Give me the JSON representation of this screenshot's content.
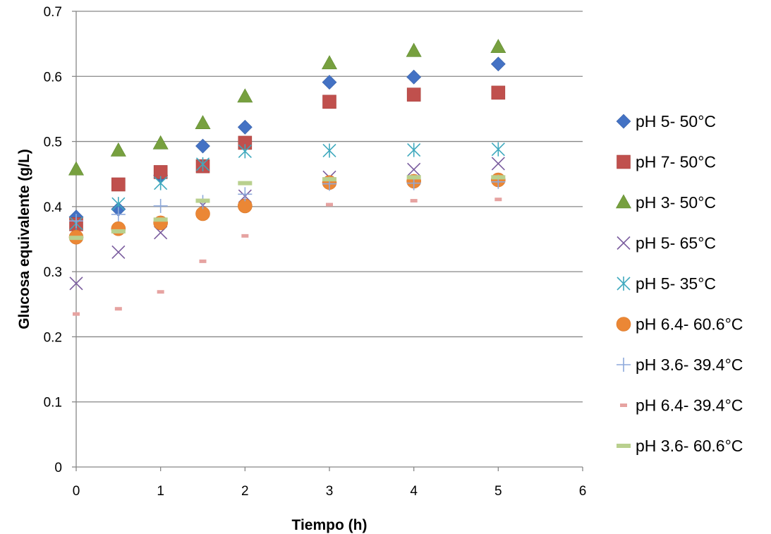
{
  "chart_data": {
    "type": "scatter",
    "title": "",
    "xlabel": "Tiempo (h)",
    "ylabel": "Glucosa equivalente (g/L)",
    "xlim": [
      0,
      6
    ],
    "ylim": [
      0,
      0.7
    ],
    "x_ticks": [
      0,
      1,
      2,
      3,
      4,
      5,
      6
    ],
    "y_ticks": [
      0,
      0.1,
      0.2,
      0.3,
      0.4,
      0.5,
      0.6,
      0.7
    ],
    "x_tick_labels": [
      "0",
      "1",
      "2",
      "3",
      "4",
      "5",
      "6"
    ],
    "y_tick_labels": [
      "0",
      "0.1",
      "0.2",
      "0.3",
      "0.4",
      "0.5",
      "0.6",
      "0.7"
    ],
    "grid": "horizontal major",
    "legend_position": "right",
    "series": [
      {
        "name": "pH 5- 50°C",
        "marker": "diamond",
        "color": "#4472C4",
        "x": [
          0,
          0.5,
          1,
          1.5,
          2,
          3,
          4,
          5
        ],
        "y": [
          0.384,
          0.396,
          0.448,
          0.493,
          0.522,
          0.591,
          0.599,
          0.619
        ]
      },
      {
        "name": "pH 7- 50°C",
        "marker": "square",
        "color": "#C0504D",
        "x": [
          0,
          0.5,
          1,
          1.5,
          2,
          3,
          4,
          5
        ],
        "y": [
          0.373,
          0.434,
          0.453,
          0.462,
          0.498,
          0.561,
          0.572,
          0.575
        ]
      },
      {
        "name": "pH 3- 50°C",
        "marker": "triangle",
        "color": "#77A03F",
        "x": [
          0,
          0.5,
          1,
          1.5,
          2,
          3,
          4,
          5
        ],
        "y": [
          0.457,
          0.486,
          0.497,
          0.528,
          0.569,
          0.62,
          0.639,
          0.645
        ]
      },
      {
        "name": "pH 5- 65°C",
        "marker": "x",
        "color": "#7A5C9E",
        "x": [
          0,
          0.5,
          1,
          1.5,
          2,
          3,
          4,
          5
        ],
        "y": [
          0.282,
          0.33,
          0.36,
          0.402,
          0.416,
          0.445,
          0.457,
          0.466
        ]
      },
      {
        "name": "pH 5- 35°C",
        "marker": "asterisk",
        "color": "#3EA9BE",
        "x": [
          0,
          0.5,
          1,
          1.5,
          2,
          3,
          4,
          5
        ],
        "y": [
          0.374,
          0.404,
          0.436,
          0.465,
          0.485,
          0.486,
          0.487,
          0.488
        ]
      },
      {
        "name": "pH 6.4- 60.6°C",
        "marker": "circle",
        "color": "#EB8735",
        "x": [
          0,
          0.5,
          1,
          1.5,
          2,
          3,
          4,
          5
        ],
        "y": [
          0.353,
          0.366,
          0.375,
          0.389,
          0.401,
          0.437,
          0.439,
          0.441
        ]
      },
      {
        "name": "pH 3.6- 39.4°C",
        "marker": "plus",
        "color": "#8EA9DB",
        "x": [
          0,
          0.5,
          1,
          1.5,
          2,
          3,
          4,
          5
        ],
        "y": [
          0.378,
          0.388,
          0.401,
          0.407,
          0.419,
          0.435,
          0.436,
          0.438
        ]
      },
      {
        "name": "pH 6.4- 39.4°C",
        "marker": "dash",
        "color": "#E6A3A1",
        "x": [
          0,
          0.5,
          1,
          1.5,
          2,
          3,
          4,
          5
        ],
        "y": [
          0.235,
          0.243,
          0.269,
          0.316,
          0.355,
          0.403,
          0.409,
          0.411
        ]
      },
      {
        "name": "pH 3.6- 60.6°C",
        "marker": "bar",
        "color": "#B9D08E",
        "x": [
          0,
          0.5,
          1,
          1.5,
          2,
          3,
          4,
          5
        ],
        "y": [
          0.352,
          0.362,
          0.38,
          0.409,
          0.436,
          0.442,
          0.445,
          0.445
        ]
      }
    ]
  }
}
